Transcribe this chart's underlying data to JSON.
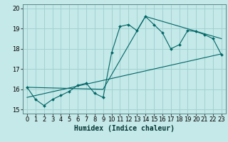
{
  "title": "",
  "xlabel": "Humidex (Indice chaleur)",
  "xlim": [
    -0.5,
    23.5
  ],
  "ylim": [
    14.8,
    20.2
  ],
  "yticks": [
    15,
    16,
    17,
    18,
    19,
    20
  ],
  "xticks": [
    0,
    1,
    2,
    3,
    4,
    5,
    6,
    7,
    8,
    9,
    10,
    11,
    12,
    13,
    14,
    15,
    16,
    17,
    18,
    19,
    20,
    21,
    22,
    23
  ],
  "bg_color": "#c5e8e8",
  "grid_color": "#9dcfcf",
  "line_color": "#006666",
  "marker_color": "#006666",
  "series1_x": [
    0,
    1,
    2,
    3,
    4,
    5,
    6,
    7,
    8,
    9,
    10,
    11,
    12,
    13,
    14,
    15,
    16,
    17,
    18,
    19,
    20,
    21,
    22,
    23
  ],
  "series1_y": [
    16.1,
    15.5,
    15.2,
    15.5,
    15.7,
    15.9,
    16.2,
    16.3,
    15.8,
    15.6,
    17.8,
    19.1,
    19.2,
    18.9,
    19.6,
    19.2,
    18.8,
    18.0,
    18.2,
    18.9,
    18.85,
    18.7,
    18.5,
    17.7
  ],
  "series2_x": [
    0,
    23
  ],
  "series2_y": [
    15.6,
    17.75
  ],
  "series3_x": [
    0,
    9,
    14,
    23
  ],
  "series3_y": [
    16.1,
    16.0,
    19.6,
    18.5
  ],
  "font_size": 6,
  "xlabel_fontsize": 7
}
